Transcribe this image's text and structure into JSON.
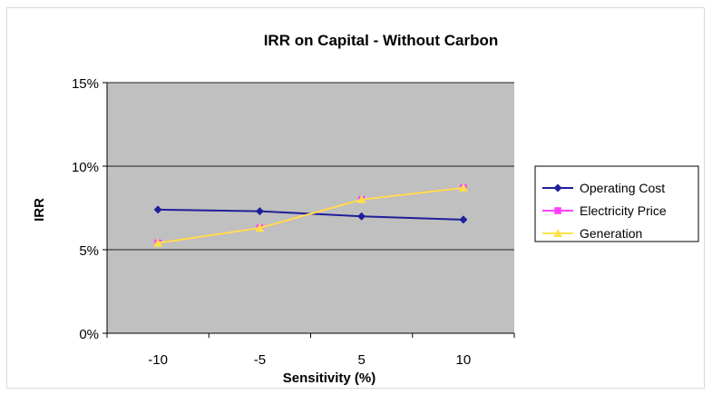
{
  "chart_data": {
    "type": "line",
    "title": "IRR on Capital - Without Carbon",
    "xlabel": "Sensitivity (%)",
    "ylabel": "IRR",
    "categories": [
      "-10",
      "-5",
      "5",
      "10"
    ],
    "yticks": [
      "0%",
      "5%",
      "10%",
      "15%"
    ],
    "ylim": [
      0,
      15
    ],
    "grid": true,
    "legend_position": "right",
    "series": [
      {
        "name": "Operating Cost",
        "values": [
          7.4,
          7.3,
          7.0,
          6.8
        ],
        "color": "#1f1f9a",
        "marker": "diamond"
      },
      {
        "name": "Electricity Price",
        "values": [
          5.4,
          6.3,
          8.0,
          8.7
        ],
        "color": "#ff40ff",
        "marker": "square"
      },
      {
        "name": "Generation",
        "values": [
          5.4,
          6.3,
          8.0,
          8.7
        ],
        "color": "#ffe24a",
        "marker": "triangle"
      }
    ],
    "colors": {
      "plot_background": "#c0c0c0",
      "gridline": "#222222"
    }
  }
}
